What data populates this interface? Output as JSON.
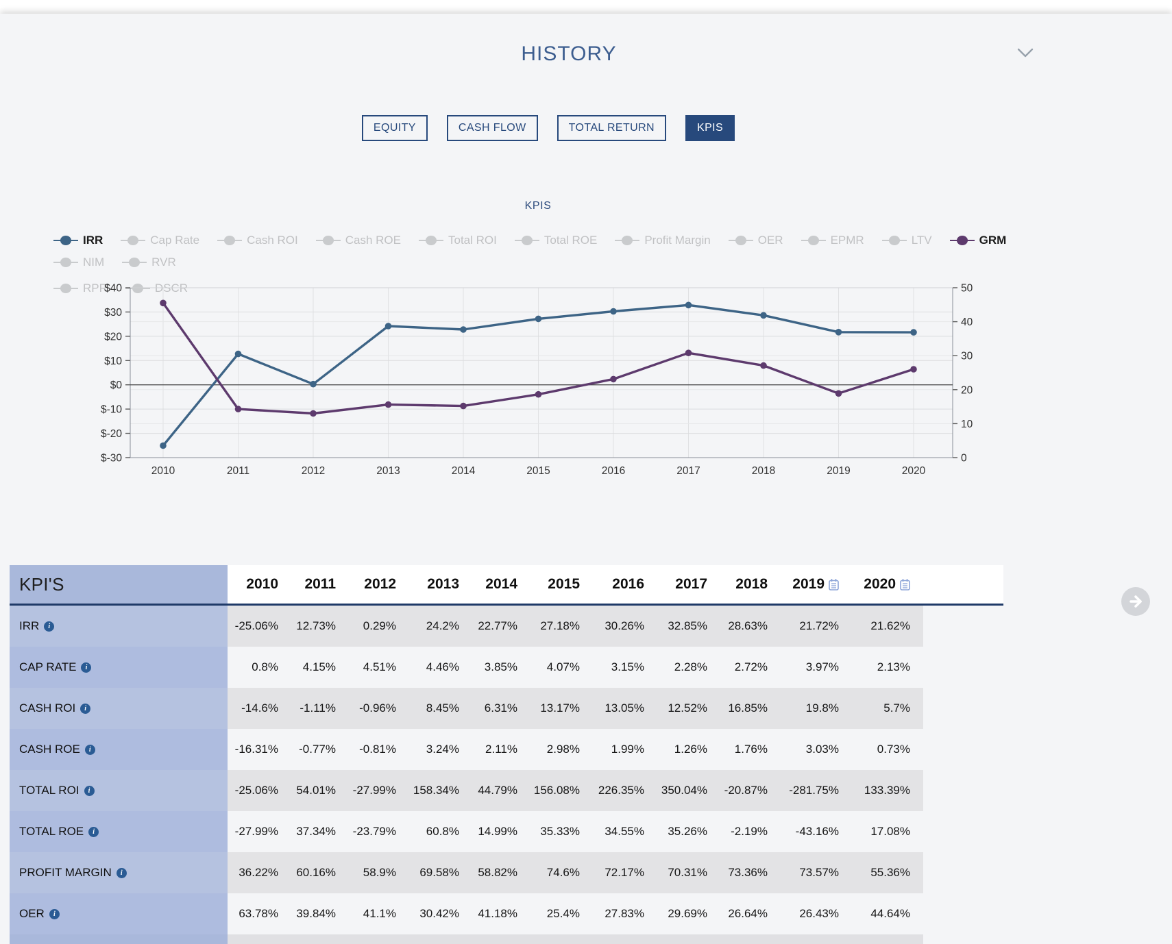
{
  "page": {
    "title": "HISTORY"
  },
  "tabs": [
    {
      "label": "EQUITY",
      "active": false
    },
    {
      "label": "CASH FLOW",
      "active": false
    },
    {
      "label": "TOTAL RETURN",
      "active": false
    },
    {
      "label": "KPIS",
      "active": true
    }
  ],
  "chart": {
    "title": "KPIS",
    "legend": [
      {
        "label": "IRR",
        "active": true,
        "color": "#3d6486"
      },
      {
        "label": "Cap Rate",
        "active": false
      },
      {
        "label": "Cash ROI",
        "active": false
      },
      {
        "label": "Cash ROE",
        "active": false
      },
      {
        "label": "Total ROI",
        "active": false
      },
      {
        "label": "Total ROE",
        "active": false
      },
      {
        "label": "Profit Margin",
        "active": false
      },
      {
        "label": "OER",
        "active": false
      },
      {
        "label": "EPMR",
        "active": false
      },
      {
        "label": "LTV",
        "active": false
      },
      {
        "label": "GRM",
        "active": true,
        "color": "#5d3a6d"
      },
      {
        "label": "NIM",
        "active": false
      },
      {
        "label": "RVR",
        "active": false
      },
      {
        "label": "RPR",
        "active": false
      },
      {
        "label": "DSCR",
        "active": false
      }
    ]
  },
  "chart_data": {
    "type": "line",
    "x": [
      2010,
      2011,
      2012,
      2013,
      2014,
      2015,
      2016,
      2017,
      2018,
      2019,
      2020
    ],
    "left_axis": {
      "min": -30,
      "max": 40,
      "ticks": [
        40,
        30,
        20,
        10,
        0,
        -10,
        -20,
        -30
      ],
      "prefix": "$"
    },
    "right_axis": {
      "min": 0,
      "max": 50,
      "ticks": [
        50,
        40,
        30,
        20,
        10,
        0
      ]
    },
    "legend_position": "top",
    "grid": true,
    "series": [
      {
        "name": "IRR",
        "axis": "left",
        "color": "#3d6486",
        "values": [
          -25.06,
          12.73,
          0.29,
          24.2,
          22.77,
          27.18,
          30.26,
          32.85,
          28.63,
          21.72,
          21.62
        ]
      },
      {
        "name": "GRM",
        "axis": "right",
        "color": "#5d3a6d",
        "values": [
          45.5,
          14.3,
          13.0,
          15.6,
          15.2,
          18.6,
          23.1,
          30.8,
          27.1,
          18.9,
          26.0
        ]
      }
    ]
  },
  "table": {
    "corner_label": "KPI'S",
    "years": [
      {
        "label": "2010"
      },
      {
        "label": "2011"
      },
      {
        "label": "2012"
      },
      {
        "label": "2013"
      },
      {
        "label": "2014"
      },
      {
        "label": "2015"
      },
      {
        "label": "2016"
      },
      {
        "label": "2017"
      },
      {
        "label": "2018"
      },
      {
        "label": "2019",
        "icon": "clipboard-icon"
      },
      {
        "label": "2020",
        "icon": "clipboard-icon"
      }
    ],
    "rows": [
      {
        "label": "IRR",
        "info_icon": true,
        "values": [
          "-25.06%",
          "12.73%",
          "0.29%",
          "24.2%",
          "22.77%",
          "27.18%",
          "30.26%",
          "32.85%",
          "28.63%",
          "21.72%",
          "21.62%"
        ]
      },
      {
        "label": "CAP RATE",
        "info_icon": true,
        "values": [
          "0.8%",
          "4.15%",
          "4.51%",
          "4.46%",
          "3.85%",
          "4.07%",
          "3.15%",
          "2.28%",
          "2.72%",
          "3.97%",
          "2.13%"
        ]
      },
      {
        "label": "CASH ROI",
        "info_icon": true,
        "values": [
          "-14.6%",
          "-1.11%",
          "-0.96%",
          "8.45%",
          "6.31%",
          "13.17%",
          "13.05%",
          "12.52%",
          "16.85%",
          "19.8%",
          "5.7%"
        ]
      },
      {
        "label": "CASH ROE",
        "info_icon": true,
        "values": [
          "-16.31%",
          "-0.77%",
          "-0.81%",
          "3.24%",
          "2.11%",
          "2.98%",
          "1.99%",
          "1.26%",
          "1.76%",
          "3.03%",
          "0.73%"
        ]
      },
      {
        "label": "TOTAL ROI",
        "info_icon": true,
        "values": [
          "-25.06%",
          "54.01%",
          "-27.99%",
          "158.34%",
          "44.79%",
          "156.08%",
          "226.35%",
          "350.04%",
          "-20.87%",
          "-281.75%",
          "133.39%"
        ]
      },
      {
        "label": "TOTAL ROE",
        "info_icon": true,
        "values": [
          "-27.99%",
          "37.34%",
          "-23.79%",
          "60.8%",
          "14.99%",
          "35.33%",
          "34.55%",
          "35.26%",
          "-2.19%",
          "-43.16%",
          "17.08%"
        ]
      },
      {
        "label": "PROFIT MARGIN",
        "info_icon": true,
        "values": [
          "36.22%",
          "60.16%",
          "58.9%",
          "69.58%",
          "58.82%",
          "74.6%",
          "72.17%",
          "70.31%",
          "73.36%",
          "73.57%",
          "55.36%"
        ]
      },
      {
        "label": "OER",
        "info_icon": true,
        "values": [
          "63.78%",
          "39.84%",
          "41.1%",
          "30.42%",
          "41.18%",
          "25.4%",
          "27.83%",
          "29.69%",
          "26.64%",
          "26.43%",
          "44.64%"
        ]
      }
    ],
    "partial_next_row": true
  },
  "colors": {
    "accent_navy": "#27497c",
    "header_border": "#1f3a68",
    "row_gray": "#e3e3e5",
    "row_light": "#f4f5f7",
    "label_odd": "#b5c2e0",
    "label_even": "#aebcdf",
    "corner_bg": "#a9b8db",
    "inactive_legend": "#c9cbcd"
  }
}
